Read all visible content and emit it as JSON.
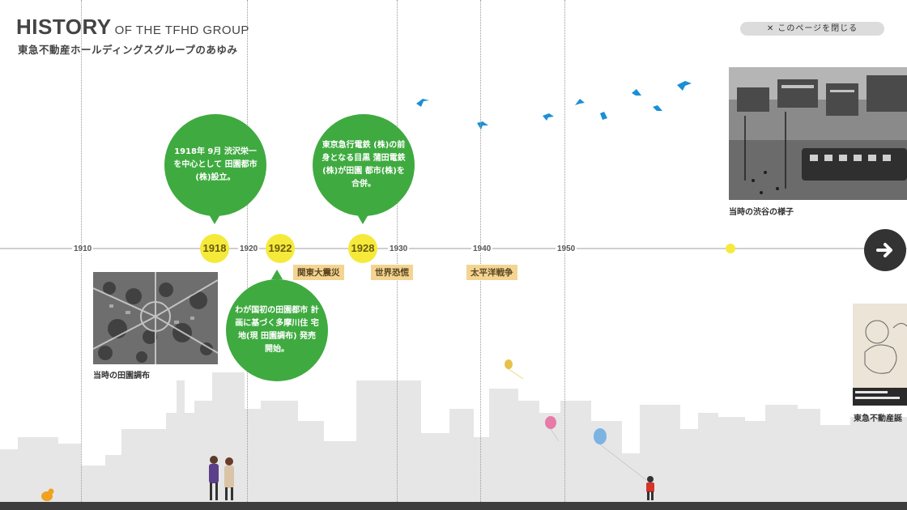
{
  "header": {
    "title_main": "HISTORY",
    "title_sub": "OF THE TFHD GROUP",
    "title_jp": "東急不動産ホールディングスグループのあゆみ",
    "close_label": "✕ このページを閉じる"
  },
  "timeline": {
    "years": [
      {
        "label": "1910"
      },
      {
        "label": "1920"
      },
      {
        "label": "1930"
      },
      {
        "label": "1940"
      },
      {
        "label": "1950"
      }
    ],
    "markers": [
      {
        "label": "1918"
      },
      {
        "label": "1922"
      },
      {
        "label": "1928"
      }
    ],
    "events": [
      {
        "label": "関東大震災"
      },
      {
        "label": "世界恐慌"
      },
      {
        "label": "太平洋戦争"
      }
    ]
  },
  "bubbles": [
    {
      "text": "1918年 9月 渋沢栄一を中心として 田園都市(株)設立。"
    },
    {
      "text": "東京急行電鉄 (株)の前身となる目黒 蒲田電鉄(株)が田園 都市(株)を合併。"
    },
    {
      "text": "わが国初の田園都市 計画に基づく多摩川住 宅地(現 田園調布) 発売開始。"
    }
  ],
  "photos": {
    "denenchofu_caption": "当時の田園調布",
    "shibuya_caption": "当時の渋谷の様子",
    "tokyu_caption": "東急不動産誕"
  },
  "colors": {
    "bubble_green": "#3faa40",
    "marker_yellow": "#f5ea3a",
    "event_tag": "#f3d492",
    "bird_blue": "#1a8fd6",
    "skyline_gray": "#e6e6e6"
  },
  "icons": {
    "next": "arrow-right-icon",
    "close": "close-icon"
  }
}
